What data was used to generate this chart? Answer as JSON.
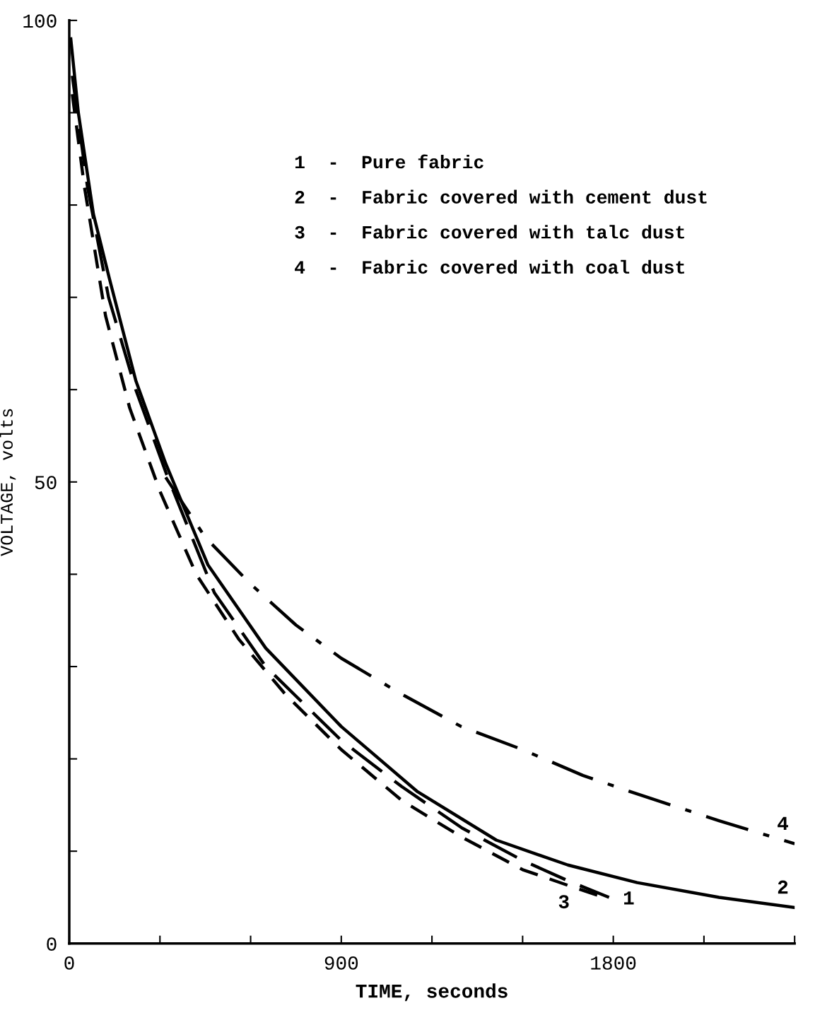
{
  "chart_data": {
    "type": "line",
    "xlabel": "TIME, seconds",
    "ylabel": "VOLTAGE, volts",
    "xlim": [
      0,
      2400
    ],
    "ylim": [
      0,
      100
    ],
    "xticks": [
      0,
      {
        "value": 300,
        "label": null
      },
      {
        "value": 600,
        "label": null
      },
      900,
      {
        "value": 1200,
        "label": null
      },
      {
        "value": 1500,
        "label": null
      },
      1800,
      {
        "value": 2100,
        "label": null
      },
      {
        "value": 2400,
        "label": null
      }
    ],
    "yticks": [
      0,
      {
        "value": 10,
        "label": null
      },
      {
        "value": 20,
        "label": null
      },
      {
        "value": 30,
        "label": null
      },
      {
        "value": 40,
        "label": null
      },
      50,
      {
        "value": 60,
        "label": null
      },
      {
        "value": 70,
        "label": null
      },
      {
        "value": 80,
        "label": null
      },
      {
        "value": 90,
        "label": null
      },
      100
    ],
    "grid": false,
    "marker": "none",
    "series": [
      {
        "name": "1",
        "color": "#000000",
        "line_style": "dashed",
        "x": [
          10,
          60,
          130,
          220,
          320,
          480,
          650,
          900,
          1100,
          1300,
          1500,
          1650,
          1786
        ],
        "values": [
          94,
          82,
          70,
          60,
          51,
          38,
          30,
          22,
          17,
          12.5,
          9,
          6.8,
          5
        ]
      },
      {
        "name": "2",
        "color": "#000000",
        "line_style": "solid",
        "x": [
          5,
          30,
          80,
          133,
          220,
          319,
          459,
          650,
          900,
          1150,
          1413,
          1650,
          1879,
          2150,
          2400
        ],
        "values": [
          98,
          90,
          79,
          72,
          61,
          52,
          41,
          32,
          23.5,
          16.5,
          11.2,
          8.5,
          6.6,
          5,
          3.9
        ]
      },
      {
        "name": "3",
        "color": "#000000",
        "line_style": "dotted",
        "x": [
          10,
          50,
          120,
          200,
          300,
          420,
          560,
          715,
          900,
          1100,
          1300,
          1500,
          1650,
          1786
        ],
        "values": [
          92,
          82,
          68,
          58,
          49,
          40,
          33,
          27,
          21,
          15.5,
          11.5,
          8,
          6.3,
          4.8
        ]
      },
      {
        "name": "4",
        "color": "#000000",
        "line_style": "dashdot",
        "x": [
          319,
          450,
          598,
          750,
          900,
          1100,
          1297,
          1500,
          1700,
          1879,
          2150,
          2400
        ],
        "values": [
          50.5,
          44,
          39,
          34.5,
          30.9,
          27,
          23.5,
          21,
          18.2,
          16.2,
          13.3,
          10.8
        ]
      }
    ],
    "annotations": [
      "1  -  Pure fabric",
      "2  -  Fabric covered with cement dust",
      "3  -  Fabric covered with talc dust",
      "4  -  Fabric covered with coal dust"
    ]
  }
}
